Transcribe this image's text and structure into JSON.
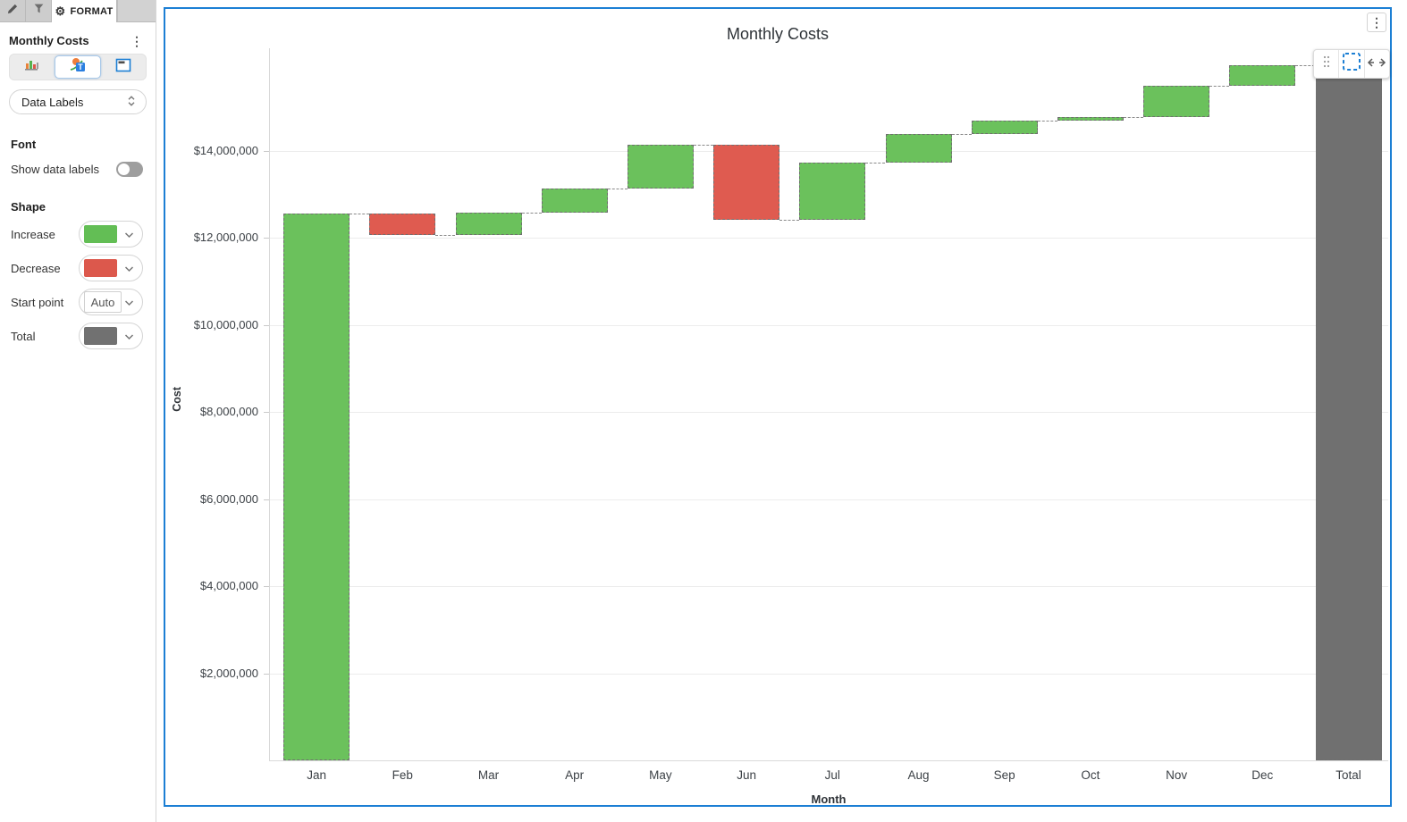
{
  "sidebar": {
    "tabs": {
      "format_label": "FORMAT"
    },
    "panel_title": "Monthly Costs",
    "section_selector": {
      "value": "Data Labels"
    },
    "font": {
      "heading": "Font",
      "show_data_labels_label": "Show data labels",
      "show_data_labels_on": false
    },
    "shape": {
      "heading": "Shape",
      "rows": [
        {
          "label": "Increase",
          "type": "color",
          "swatch": "#63BE55"
        },
        {
          "label": "Decrease",
          "type": "color",
          "swatch": "#DC584C"
        },
        {
          "label": "Start point",
          "type": "text",
          "value": "Auto"
        },
        {
          "label": "Total",
          "type": "color",
          "swatch": "#717171"
        }
      ]
    }
  },
  "chart_card": {
    "border_color": "#1C7FD4",
    "menu_icon": "kebab-menu-icon",
    "toolbar_icons": [
      "drag-handle-icon",
      "selection-box-icon",
      "resize-horizontal-icon"
    ]
  },
  "chart_data": {
    "type": "waterfall",
    "title": "Monthly Costs",
    "xlabel": "Month",
    "ylabel": "Cost",
    "categories": [
      "Jan",
      "Feb",
      "Mar",
      "Apr",
      "May",
      "Jun",
      "Jul",
      "Aug",
      "Sep",
      "Oct",
      "Nov",
      "Dec",
      "Total"
    ],
    "changes": [
      12550000,
      -480000,
      500000,
      550000,
      1010000,
      -1710000,
      1300000,
      670000,
      290000,
      100000,
      700000,
      490000
    ],
    "cumulative": [
      12550000,
      12070000,
      12570000,
      13120000,
      14130000,
      12420000,
      13720000,
      14390000,
      14680000,
      14780000,
      15480000,
      15970000
    ],
    "total": 15970000,
    "ylim": [
      0,
      16350000
    ],
    "yticks": [
      2000000,
      4000000,
      6000000,
      8000000,
      10000000,
      12000000,
      14000000
    ],
    "ytick_labels": [
      "$2,000,000",
      "$4,000,000",
      "$6,000,000",
      "$8,000,000",
      "$10,000,000",
      "$12,000,000",
      "$14,000,000"
    ],
    "colors": {
      "increase": "#6BC15C",
      "decrease": "#DF5B50",
      "total": "#707070"
    },
    "legend": "none",
    "grid": true
  }
}
